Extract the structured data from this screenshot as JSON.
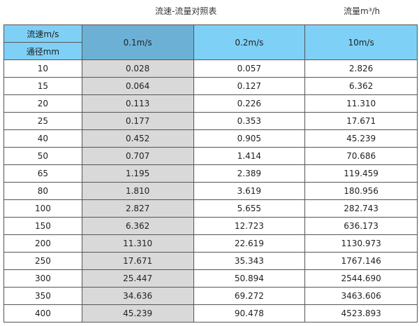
{
  "title": "流速-流量对照表",
  "unit": "流量m³/h",
  "header": {
    "velocity_label": "流速m/s",
    "diameter_label": "通径mm",
    "columns": [
      "0.1m/s",
      "0.2m/s",
      "10m/s"
    ]
  },
  "rows": [
    [
      "10",
      "0.028",
      "0.057",
      "2.826"
    ],
    [
      "15",
      "0.064",
      "0.127",
      "6.362"
    ],
    [
      "20",
      "0.113",
      "0.226",
      "11.310"
    ],
    [
      "25",
      "0.177",
      "0.353",
      "17.671"
    ],
    [
      "40",
      "0.452",
      "0.905",
      "45.239"
    ],
    [
      "50",
      "0.707",
      "1.414",
      "70.686"
    ],
    [
      "65",
      "1.195",
      "2.389",
      "119.459"
    ],
    [
      "80",
      "1.810",
      "3.619",
      "180.956"
    ],
    [
      "100",
      "2.827",
      "5.655",
      "282.743"
    ],
    [
      "150",
      "6.362",
      "12.723",
      "636.173"
    ],
    [
      "200",
      "11.310",
      "22.619",
      "1130.973"
    ],
    [
      "250",
      "17.671",
      "35.343",
      "1767.146"
    ],
    [
      "300",
      "25.447",
      "50.894",
      "2544.690"
    ],
    [
      "350",
      "34.636",
      "69.272",
      "3463.606"
    ],
    [
      "400",
      "45.239",
      "90.478",
      "4523.893"
    ]
  ],
  "colors": {
    "header": "#7fd0f6",
    "highlight_header": "#6cb1d5",
    "highlight_column": "#d9d9d9"
  }
}
